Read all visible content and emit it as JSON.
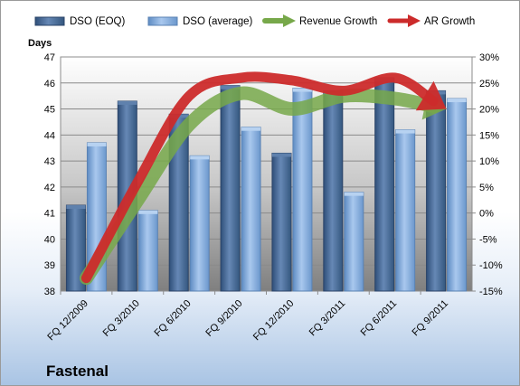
{
  "chart_data": {
    "type": "bar",
    "company_label": "Fastenal",
    "ylabel": "Days",
    "ylim": [
      38,
      47
    ],
    "y2lim": [
      -15,
      30
    ],
    "y_ticks": [
      "47",
      "46",
      "45",
      "44",
      "43",
      "42",
      "41",
      "40",
      "39",
      "38"
    ],
    "y2_ticks": [
      "30%",
      "25%",
      "20%",
      "15%",
      "10%",
      "5%",
      "0%",
      "-5%",
      "-10%",
      "-15%"
    ],
    "categories": [
      "FQ 12/2009",
      "FQ 3/2010",
      "FQ 6/2010",
      "FQ 9/2010",
      "FQ 12/2010",
      "FQ 3/2011",
      "FQ 6/2011",
      "FQ 9/2011"
    ],
    "grid": true,
    "legend_position": "top",
    "series": [
      {
        "name": "DSO (EOQ)",
        "kind": "bar",
        "axis": "left",
        "color": "#4a6f9e",
        "values": [
          41.3,
          45.3,
          44.8,
          45.9,
          43.3,
          45.7,
          46.2,
          45.7
        ]
      },
      {
        "name": "DSO (average)",
        "kind": "bar",
        "axis": "left",
        "color": "#8db4e2",
        "values": [
          43.7,
          41.1,
          43.2,
          44.3,
          45.8,
          41.8,
          44.2,
          45.4
        ]
      },
      {
        "name": "Revenue Growth",
        "kind": "line",
        "axis": "right",
        "color": "#77a84a",
        "values": [
          -12.5,
          2.5,
          17,
          23,
          20,
          22.5,
          22,
          20
        ]
      },
      {
        "name": "AR Growth",
        "kind": "line",
        "axis": "right",
        "color": "#cc2b2b",
        "values": [
          -12.5,
          6,
          22.5,
          26,
          25.5,
          23.5,
          26,
          20
        ]
      }
    ]
  }
}
